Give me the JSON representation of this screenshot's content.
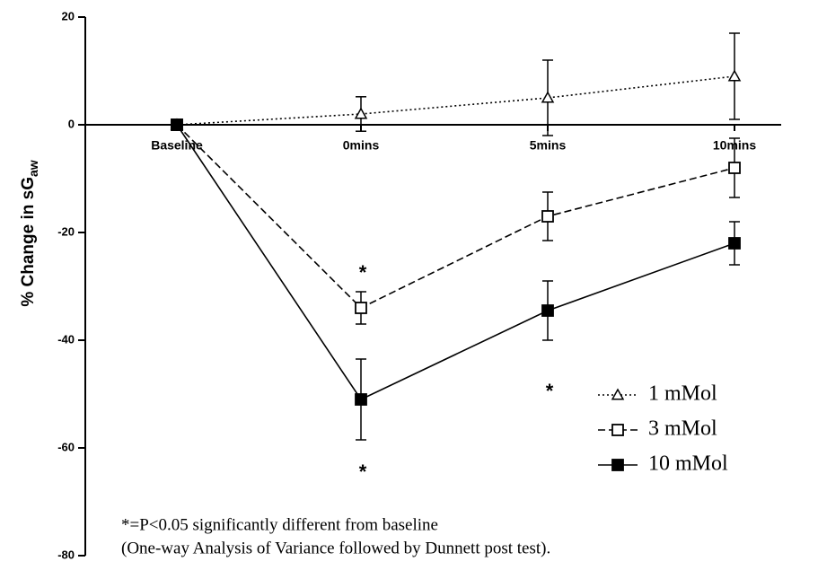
{
  "chart_data": {
    "type": "line",
    "ylabel": {
      "text": "% Change in sG",
      "sub": "aw"
    },
    "categories": [
      "Baseline",
      "0mins",
      "5mins",
      "10mins"
    ],
    "series": [
      {
        "name": "1 mMol",
        "color": "#000000",
        "marker": "triangle-open",
        "line_style": "dotted",
        "values": [
          0,
          2,
          5,
          9
        ],
        "errors": [
          0,
          3.2,
          7,
          8
        ]
      },
      {
        "name": "3 mMol",
        "color": "#000000",
        "marker": "square-open",
        "line_style": "dashed",
        "values": [
          0,
          -34,
          -17,
          -8
        ],
        "errors": [
          0,
          3,
          4.5,
          5.5
        ]
      },
      {
        "name": "10 mMol",
        "color": "#000000",
        "marker": "square-filled",
        "line_style": "solid",
        "values": [
          0,
          -51,
          -34.5,
          -22
        ],
        "errors": [
          0,
          7.5,
          5.5,
          4
        ]
      }
    ],
    "ylim": [
      -80,
      20
    ],
    "yticks": [
      -80,
      -60,
      -40,
      -20,
      0,
      20
    ],
    "significance": [
      {
        "category": 1,
        "y": -27,
        "label": "*"
      },
      {
        "category": 1,
        "y": -64,
        "label": "*"
      },
      {
        "category": 2,
        "y": -49,
        "label": "*"
      }
    ],
    "footnote": [
      "*=P<0.05 significantly different from baseline",
      "(One-way Analysis of Variance followed by Dunnett post test)."
    ],
    "legend": "lower right"
  }
}
